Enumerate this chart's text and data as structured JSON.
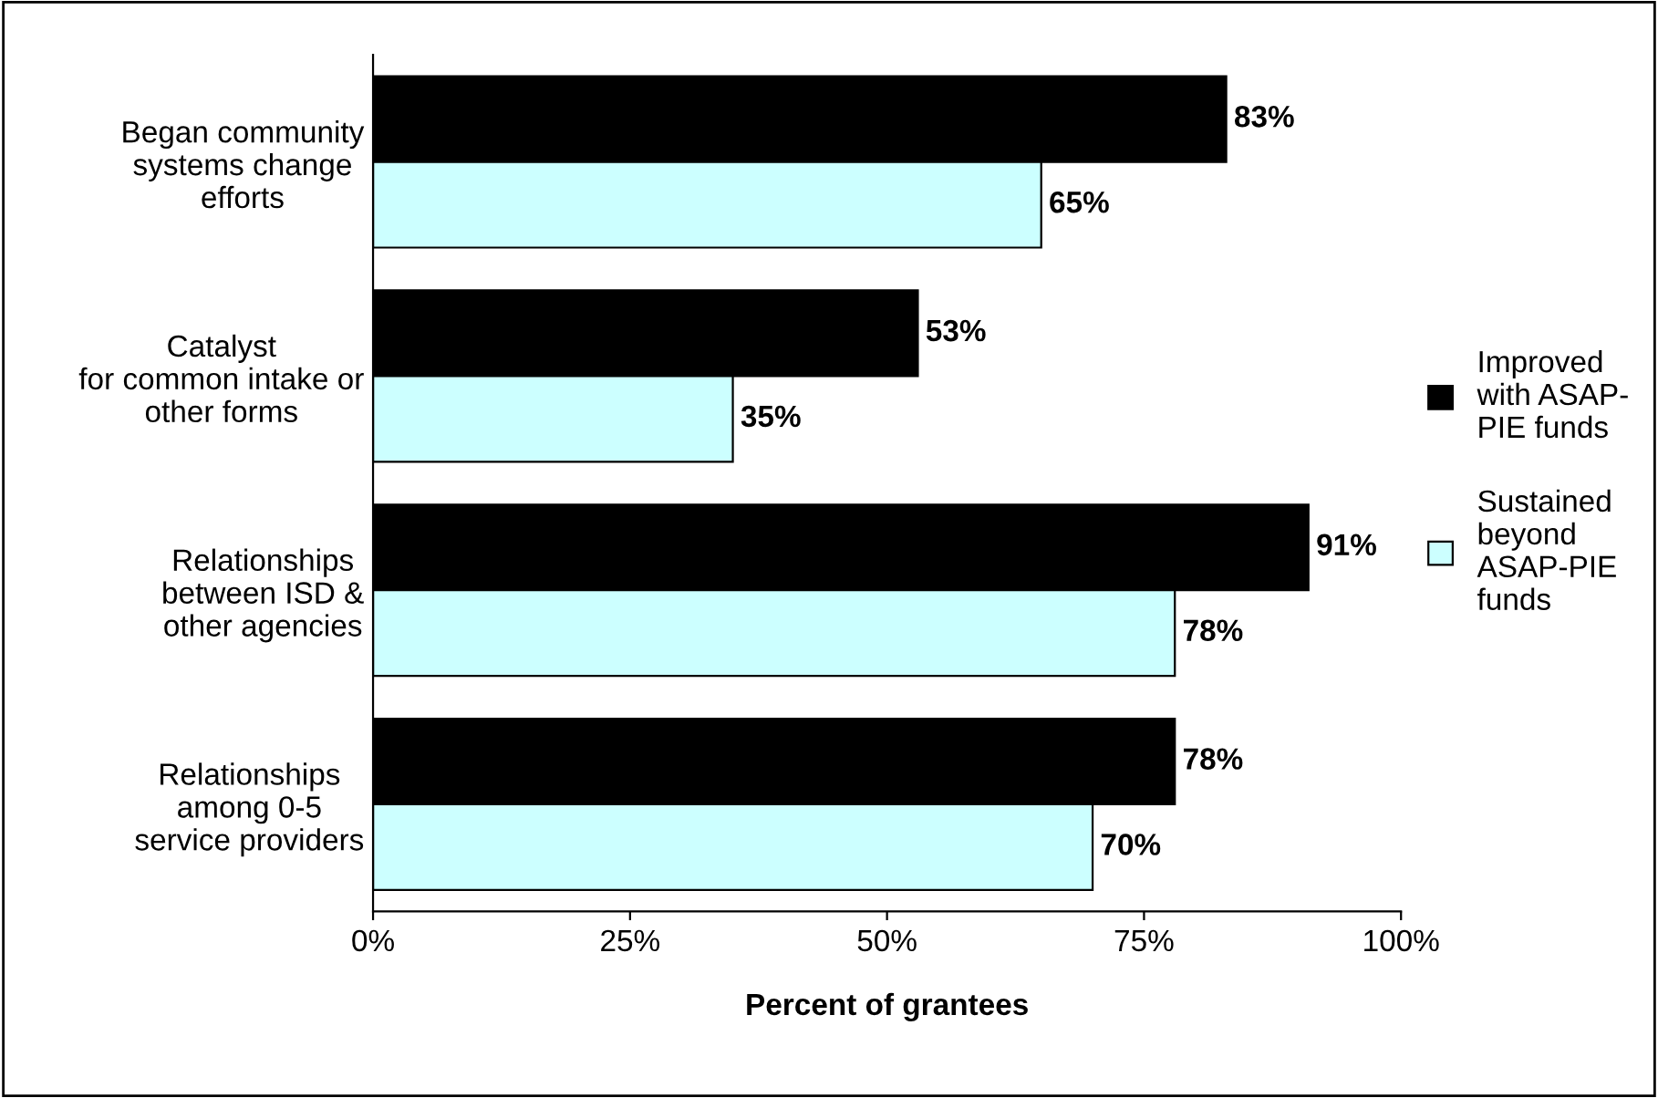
{
  "chart_data": {
    "type": "bar",
    "orientation": "horizontal",
    "xlabel": "Percent of grantees",
    "categories": [
      "Began community\nsystems change\nefforts",
      "Catalyst\nfor common intake or\nother forms",
      "Relationships\nbetween ISD &\nother agencies",
      "Relationships\namong 0-5\nservice providers"
    ],
    "series": [
      {
        "name": "Improved\nwith ASAP-\nPIE funds",
        "color": "#000000",
        "values": [
          83,
          53,
          91,
          78
        ],
        "value_labels": [
          "83%",
          "53%",
          "91%",
          "78%"
        ]
      },
      {
        "name": "Sustained\nbeyond\nASAP-PIE\nfunds",
        "color": "#ccffff",
        "values": [
          65,
          35,
          78,
          70
        ],
        "value_labels": [
          "65%",
          "35%",
          "78%",
          "70%"
        ]
      }
    ],
    "xlim": [
      0,
      100
    ],
    "xticks": [
      {
        "value": 0,
        "label": "0%"
      },
      {
        "value": 25,
        "label": "25%"
      },
      {
        "value": 50,
        "label": "50%"
      },
      {
        "value": 75,
        "label": "75%"
      },
      {
        "value": 100,
        "label": "100%"
      }
    ],
    "legend": "right",
    "grid": false
  }
}
